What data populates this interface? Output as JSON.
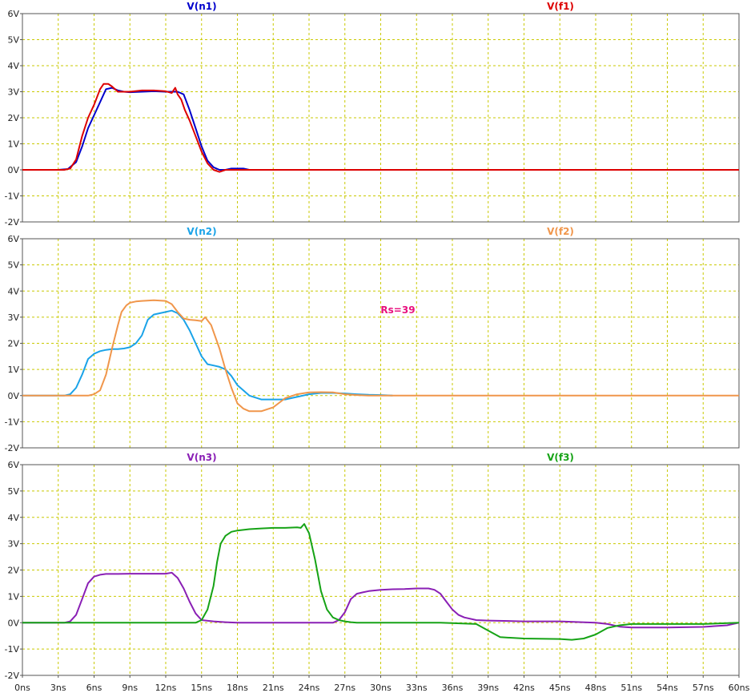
{
  "chart_data": [
    {
      "type": "line",
      "xlim": [
        0,
        60
      ],
      "ylim": [
        -2,
        6
      ],
      "y_ticks": [
        "6V",
        "5V",
        "4V",
        "3V",
        "2V",
        "1V",
        "0V",
        "-1V",
        "-2V"
      ],
      "grid": true,
      "series": [
        {
          "name": "V(n1)",
          "color": "#0000cc",
          "x": [
            0,
            3,
            3.8,
            4.5,
            5,
            5.5,
            6,
            6.5,
            7,
            7.5,
            8,
            8.5,
            9,
            10,
            11,
            12,
            13,
            13.5,
            14,
            14.5,
            15,
            15.5,
            16,
            16.5,
            17,
            17.5,
            18,
            18.5,
            19
          ],
          "y": [
            0,
            0,
            0.03,
            0.3,
            0.9,
            1.6,
            2.1,
            2.6,
            3.1,
            3.15,
            3.05,
            3.0,
            2.98,
            3.0,
            3.02,
            3.0,
            3.0,
            2.9,
            2.3,
            1.6,
            0.9,
            0.35,
            0.1,
            0.0,
            0.0,
            0.05,
            0.05,
            0.05,
            0.0
          ]
        },
        {
          "name": "V(f1)",
          "color": "#dd0000",
          "x": [
            0,
            3.5,
            4,
            4.5,
            5,
            5.5,
            6,
            6.5,
            6.8,
            7.2,
            7.5,
            8,
            9,
            10,
            11,
            12,
            12.5,
            12.8,
            13,
            13.3,
            13.6,
            14,
            14.5,
            15,
            15.5,
            16,
            16.5,
            17,
            18,
            60
          ],
          "y": [
            0,
            0,
            0.05,
            0.4,
            1.3,
            2.0,
            2.5,
            3.1,
            3.3,
            3.3,
            3.2,
            3.0,
            3.0,
            3.05,
            3.05,
            3.02,
            2.95,
            3.15,
            2.9,
            2.7,
            2.3,
            1.9,
            1.3,
            0.7,
            0.25,
            0.0,
            -0.08,
            0.0,
            0,
            0
          ]
        }
      ]
    },
    {
      "type": "line",
      "xlim": [
        0,
        60
      ],
      "ylim": [
        -2,
        6
      ],
      "y_ticks": [
        "6V",
        "5V",
        "4V",
        "3V",
        "2V",
        "1V",
        "0V",
        "-1V",
        "-2V"
      ],
      "grid": true,
      "annotation": "Rs=39",
      "series": [
        {
          "name": "V(n2)",
          "color": "#1aa3e8",
          "x": [
            0,
            3.5,
            4,
            4.5,
            5,
            5.5,
            6,
            6.5,
            7,
            7.5,
            8,
            8.5,
            9,
            9.5,
            10,
            10.5,
            11,
            11.5,
            12,
            12.5,
            13,
            13.5,
            14,
            14.5,
            15,
            15.5,
            16,
            16.5,
            17,
            17.5,
            18,
            19,
            20,
            21,
            22,
            23,
            24,
            25,
            26,
            27,
            28,
            29,
            30,
            31
          ],
          "y": [
            0,
            0,
            0.05,
            0.3,
            0.8,
            1.4,
            1.6,
            1.7,
            1.75,
            1.78,
            1.78,
            1.8,
            1.85,
            2.0,
            2.3,
            2.9,
            3.1,
            3.15,
            3.2,
            3.25,
            3.15,
            2.9,
            2.5,
            2.0,
            1.5,
            1.2,
            1.15,
            1.1,
            1.0,
            0.75,
            0.4,
            0.0,
            -0.15,
            -0.15,
            -0.15,
            -0.05,
            0.05,
            0.1,
            0.1,
            0.08,
            0.05,
            0.03,
            0.02,
            0.0
          ]
        },
        {
          "name": "V(f2)",
          "color": "#f0964b",
          "x": [
            0,
            5.5,
            6,
            6.5,
            7,
            7.5,
            8,
            8.3,
            8.7,
            9,
            9.5,
            10,
            11,
            12,
            12.5,
            13,
            13.5,
            14,
            14.5,
            15,
            15.3,
            15.8,
            16.5,
            17,
            17.5,
            18,
            18.5,
            19,
            20,
            21,
            22,
            23,
            24,
            25,
            26,
            27,
            28,
            29,
            30,
            60
          ],
          "y": [
            0,
            0,
            0.05,
            0.2,
            0.8,
            1.8,
            2.7,
            3.2,
            3.45,
            3.55,
            3.6,
            3.62,
            3.65,
            3.62,
            3.5,
            3.2,
            2.95,
            2.9,
            2.88,
            2.85,
            3.0,
            2.7,
            1.8,
            1.0,
            0.3,
            -0.3,
            -0.5,
            -0.6,
            -0.6,
            -0.45,
            -0.1,
            0.05,
            0.12,
            0.13,
            0.12,
            0.05,
            0.02,
            0,
            0,
            0
          ]
        }
      ]
    },
    {
      "type": "line",
      "xlim": [
        0,
        60
      ],
      "ylim": [
        -2,
        6
      ],
      "y_ticks": [
        "6V",
        "5V",
        "4V",
        "3V",
        "2V",
        "1V",
        "0V",
        "-1V",
        "-2V"
      ],
      "x_ticks": [
        "0ns",
        "3ns",
        "6ns",
        "9ns",
        "12ns",
        "15ns",
        "18ns",
        "21ns",
        "24ns",
        "27ns",
        "30ns",
        "33ns",
        "36ns",
        "39ns",
        "42ns",
        "45ns",
        "48ns",
        "51ns",
        "54ns",
        "57ns",
        "60ns"
      ],
      "grid": true,
      "series": [
        {
          "name": "V(n3)",
          "color": "#8a1fb5",
          "x": [
            0,
            3.5,
            4,
            4.5,
            5,
            5.5,
            6,
            6.5,
            7,
            8,
            9,
            10,
            11,
            12,
            12.5,
            13,
            13.5,
            14,
            14.5,
            15,
            16,
            17,
            18,
            20,
            22,
            24,
            26,
            26.5,
            27,
            27.5,
            28,
            28.5,
            29,
            30,
            31,
            32,
            33,
            34,
            34.5,
            35,
            35.5,
            36,
            36.5,
            37,
            38,
            39,
            42,
            45,
            48,
            49,
            50,
            51,
            54,
            57,
            59,
            60
          ],
          "y": [
            0,
            0,
            0.05,
            0.3,
            0.9,
            1.5,
            1.75,
            1.82,
            1.85,
            1.85,
            1.86,
            1.86,
            1.86,
            1.86,
            1.9,
            1.7,
            1.3,
            0.8,
            0.35,
            0.1,
            0.05,
            0.02,
            0.0,
            0.0,
            0.0,
            0.0,
            0.0,
            0.1,
            0.4,
            0.9,
            1.1,
            1.15,
            1.2,
            1.25,
            1.27,
            1.28,
            1.3,
            1.3,
            1.25,
            1.1,
            0.8,
            0.5,
            0.3,
            0.2,
            0.1,
            0.08,
            0.05,
            0.05,
            0.0,
            -0.05,
            -0.15,
            -0.18,
            -0.18,
            -0.16,
            -0.1,
            0.0
          ]
        },
        {
          "name": "V(f3)",
          "color": "#16a316",
          "x": [
            0,
            14.5,
            15,
            15.5,
            16,
            16.3,
            16.6,
            17,
            17.5,
            18,
            19,
            20,
            21,
            22,
            23,
            23.3,
            23.6,
            24,
            24.5,
            25,
            25.5,
            26,
            26.5,
            27,
            27.5,
            28,
            30,
            35,
            38,
            39,
            40,
            42,
            45,
            46,
            47,
            48,
            49,
            50,
            51,
            54,
            57,
            60
          ],
          "y": [
            0,
            0,
            0.1,
            0.5,
            1.4,
            2.3,
            3.0,
            3.3,
            3.45,
            3.5,
            3.55,
            3.58,
            3.6,
            3.6,
            3.62,
            3.6,
            3.75,
            3.4,
            2.4,
            1.2,
            0.5,
            0.2,
            0.1,
            0.05,
            0.02,
            0.0,
            0.0,
            0.0,
            -0.05,
            -0.3,
            -0.55,
            -0.6,
            -0.62,
            -0.65,
            -0.6,
            -0.45,
            -0.2,
            -0.1,
            -0.05,
            -0.05,
            -0.05,
            0.0
          ]
        }
      ]
    }
  ]
}
